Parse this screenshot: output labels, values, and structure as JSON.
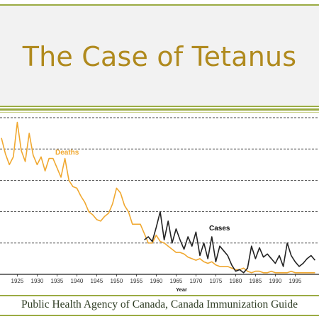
{
  "slide": {
    "title": "The Case of Tetanus",
    "source": "Public Health Agency of Canada, Canada Immunization Guide"
  },
  "colors": {
    "accent_rule": "#9aab43",
    "title_text": "#b08a1e",
    "deaths_line": "#f0a830",
    "cases_line": "#222222",
    "grid": "#444444"
  },
  "chart_data": {
    "type": "line",
    "title": "",
    "xlabel": "Year",
    "ylabel": "",
    "x_ticks": [
      1925,
      1930,
      1935,
      1940,
      1945,
      1950,
      1955,
      1960,
      1965,
      1970,
      1975,
      1980,
      1985,
      1990,
      1995
    ],
    "x_range": [
      1921,
      2001
    ],
    "y_range": [
      0,
      100
    ],
    "grid": "horizontal dashed",
    "series": [
      {
        "name": "Deaths",
        "color": "#f0a830",
        "x": [
          1921,
          1922,
          1923,
          1924,
          1925,
          1926,
          1927,
          1928,
          1929,
          1930,
          1931,
          1932,
          1933,
          1934,
          1935,
          1936,
          1937,
          1938,
          1939,
          1940,
          1941,
          1942,
          1943,
          1944,
          1945,
          1946,
          1947,
          1948,
          1949,
          1950,
          1951,
          1952,
          1953,
          1954,
          1955,
          1956,
          1957,
          1958,
          1959,
          1960,
          1961,
          1962,
          1963,
          1964,
          1965,
          1966,
          1967,
          1968,
          1969,
          1970,
          1971,
          1972,
          1973,
          1974,
          1975,
          1976,
          1977,
          1978,
          1979,
          1980,
          1981,
          1982,
          1983,
          1984,
          1985,
          1986,
          1987,
          1988,
          1989,
          1990,
          1991,
          1992,
          1993,
          1994,
          1995,
          1996,
          1997,
          1998,
          1999,
          2000
        ],
        "y": [
          87,
          77,
          70,
          75,
          97,
          79,
          72,
          90,
          76,
          70,
          75,
          66,
          74,
          74,
          68,
          62,
          74,
          60,
          56,
          55,
          50,
          46,
          40,
          38,
          35,
          34,
          37,
          39,
          45,
          55,
          52,
          44,
          40,
          32,
          32,
          32,
          26,
          20,
          20,
          25,
          21,
          20,
          18,
          16,
          14,
          14,
          13,
          11,
          10,
          9,
          10,
          8,
          7,
          8,
          6,
          5,
          5,
          5,
          4,
          3,
          3,
          4,
          2,
          1,
          2,
          2,
          1,
          1,
          2,
          1,
          1,
          1,
          1,
          2,
          1,
          1,
          1,
          1,
          1,
          1
        ]
      },
      {
        "name": "Cases",
        "color": "#222222",
        "x": [
          1957,
          1958,
          1959,
          1960,
          1961,
          1962,
          1963,
          1964,
          1965,
          1966,
          1967,
          1968,
          1969,
          1970,
          1971,
          1972,
          1973,
          1974,
          1975,
          1976,
          1977,
          1978,
          1979,
          1980,
          1981,
          1982,
          1983,
          1984,
          1985,
          1986,
          1987,
          1988,
          1989,
          1990,
          1991,
          1992,
          1993,
          1994,
          1995,
          1996,
          1997,
          1998,
          1999,
          2000
        ],
        "y": [
          22,
          24,
          21,
          30,
          40,
          22,
          34,
          20,
          29,
          22,
          16,
          24,
          18,
          27,
          12,
          20,
          10,
          24,
          8,
          18,
          15,
          12,
          6,
          2,
          3,
          1,
          4,
          18,
          10,
          17,
          11,
          13,
          10,
          7,
          12,
          5,
          20,
          12,
          8,
          5,
          7,
          10,
          12,
          9
        ]
      }
    ],
    "annotations": [
      {
        "text": "Deaths",
        "series": "Deaths"
      },
      {
        "text": "Cases",
        "series": "Cases"
      }
    ]
  }
}
